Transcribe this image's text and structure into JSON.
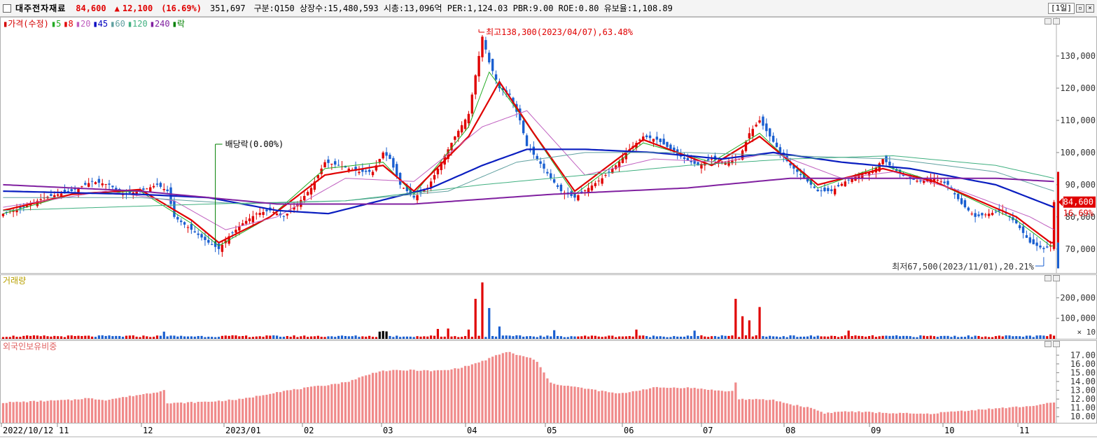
{
  "header": {
    "name": "대주전자재료",
    "price": "84,600",
    "arrow": "▲",
    "change": "12,100",
    "change_pct": "(16.69%)",
    "volume": "351,697",
    "stats": "구분:Q150 상장수:15,480,593 시총:13,096억 PER:1,124.03 PBR:9.00 ROE:0.80 유보율:1,108.89",
    "period": "[1일]"
  },
  "legend_price": [
    {
      "text": "가격(수정)",
      "color": "#d40000"
    },
    {
      "text": "5",
      "color": "#22aa22"
    },
    {
      "text": "8",
      "color": "#e00000"
    },
    {
      "text": "20",
      "color": "#c060c0"
    },
    {
      "text": "45",
      "color": "#0000c0"
    },
    {
      "text": "60",
      "color": "#60a0a0"
    },
    {
      "text": "120",
      "color": "#40b080"
    },
    {
      "text": "240",
      "color": "#8020a0"
    },
    {
      "text": "락",
      "color": "#008000"
    }
  ],
  "legend_volume": "거래량",
  "legend_foreign": "외국인보유비중",
  "annotations": {
    "high": "최고138,300(2023/04/07),63.48%",
    "low": "최저67,500(2023/11/01),20.21%",
    "dividend": "배당락(0.00%)",
    "last_price": "84,600",
    "last_pct": "16.69%",
    "volume_unit": "× 10"
  },
  "chart_data": [
    {
      "type": "candlestick",
      "panel": "price",
      "x_labels": [
        "2022/10/12",
        "11",
        "12",
        "2023/01",
        "02",
        "03",
        "04",
        "05",
        "06",
        "07",
        "08",
        "09",
        "10",
        "11"
      ],
      "y_ticks": [
        "70,000",
        "80,000",
        "90,000",
        "100,000",
        "110,000",
        "120,000",
        "130,000"
      ],
      "ylim": [
        63000,
        140000
      ],
      "close_path": [
        [
          0,
          81000
        ],
        [
          6,
          83000
        ],
        [
          12,
          86000
        ],
        [
          20,
          88000
        ],
        [
          26,
          91000
        ],
        [
          31,
          90000
        ],
        [
          35,
          87000
        ],
        [
          40,
          88000
        ],
        [
          45,
          90000
        ],
        [
          48,
          88000
        ],
        [
          50,
          80000
        ],
        [
          55,
          76000
        ],
        [
          60,
          72000
        ],
        [
          63,
          70000
        ],
        [
          66,
          74000
        ],
        [
          70,
          78000
        ],
        [
          74,
          81000
        ],
        [
          78,
          82000
        ],
        [
          82,
          80000
        ],
        [
          86,
          84000
        ],
        [
          90,
          89000
        ],
        [
          94,
          97000
        ],
        [
          98,
          96000
        ],
        [
          104,
          94000
        ],
        [
          108,
          94000
        ],
        [
          111,
          100000
        ],
        [
          113,
          98000
        ],
        [
          116,
          90000
        ],
        [
          120,
          86000
        ],
        [
          124,
          89000
        ],
        [
          128,
          97000
        ],
        [
          132,
          105000
        ],
        [
          136,
          112000
        ],
        [
          139,
          130000
        ],
        [
          140,
          136000
        ],
        [
          142,
          128000
        ],
        [
          145,
          120000
        ],
        [
          148,
          118000
        ],
        [
          151,
          110000
        ],
        [
          153,
          102000
        ],
        [
          156,
          98000
        ],
        [
          160,
          92000
        ],
        [
          163,
          88000
        ],
        [
          167,
          86000
        ],
        [
          171,
          89000
        ],
        [
          175,
          92000
        ],
        [
          179,
          96000
        ],
        [
          183,
          101000
        ],
        [
          187,
          105000
        ],
        [
          191,
          104000
        ],
        [
          195,
          101000
        ],
        [
          199,
          98000
        ],
        [
          203,
          96000
        ],
        [
          207,
          98000
        ],
        [
          211,
          97000
        ],
        [
          215,
          98000
        ],
        [
          218,
          106000
        ],
        [
          221,
          110000
        ],
        [
          224,
          105000
        ],
        [
          227,
          100000
        ],
        [
          230,
          96000
        ],
        [
          234,
          92000
        ],
        [
          238,
          88000
        ],
        [
          242,
          88000
        ],
        [
          246,
          91000
        ],
        [
          250,
          93000
        ],
        [
          254,
          94000
        ],
        [
          257,
          98000
        ],
        [
          260,
          95000
        ],
        [
          264,
          92000
        ],
        [
          268,
          91000
        ],
        [
          272,
          92000
        ],
        [
          276,
          90000
        ],
        [
          280,
          84000
        ],
        [
          284,
          80000
        ],
        [
          288,
          81000
        ],
        [
          292,
          82000
        ],
        [
          296,
          78000
        ],
        [
          300,
          72000
        ],
        [
          304,
          70000
        ],
        [
          306,
          71000
        ],
        [
          307,
          84600
        ]
      ],
      "moving_averages": {
        "ma5": [
          [
            0,
            81000
          ],
          [
            20,
            87000
          ],
          [
            40,
            88000
          ],
          [
            55,
            78000
          ],
          [
            63,
            71000
          ],
          [
            78,
            80000
          ],
          [
            94,
            95000
          ],
          [
            111,
            97000
          ],
          [
            120,
            87000
          ],
          [
            136,
            108000
          ],
          [
            142,
            125000
          ],
          [
            151,
            112000
          ],
          [
            167,
            87000
          ],
          [
            187,
            103000
          ],
          [
            207,
            97000
          ],
          [
            221,
            106000
          ],
          [
            238,
            89000
          ],
          [
            257,
            96000
          ],
          [
            272,
            91000
          ],
          [
            296,
            79000
          ],
          [
            306,
            71000
          ]
        ],
        "ma8": [
          [
            0,
            82000
          ],
          [
            20,
            87000
          ],
          [
            40,
            88500
          ],
          [
            55,
            79000
          ],
          [
            63,
            72000
          ],
          [
            78,
            80000
          ],
          [
            94,
            93000
          ],
          [
            111,
            96000
          ],
          [
            120,
            88000
          ],
          [
            136,
            105000
          ],
          [
            145,
            122000
          ],
          [
            155,
            106000
          ],
          [
            167,
            88000
          ],
          [
            187,
            104000
          ],
          [
            207,
            96000
          ],
          [
            221,
            105000
          ],
          [
            238,
            90000
          ],
          [
            257,
            95000
          ],
          [
            272,
            91000
          ],
          [
            296,
            80000
          ],
          [
            306,
            72000
          ]
        ],
        "ma20": [
          [
            0,
            83000
          ],
          [
            30,
            88000
          ],
          [
            50,
            85000
          ],
          [
            65,
            76000
          ],
          [
            80,
            80000
          ],
          [
            100,
            92000
          ],
          [
            120,
            91000
          ],
          [
            140,
            108000
          ],
          [
            153,
            113000
          ],
          [
            170,
            93000
          ],
          [
            190,
            98000
          ],
          [
            210,
            97000
          ],
          [
            225,
            100000
          ],
          [
            245,
            92000
          ],
          [
            260,
            94000
          ],
          [
            280,
            88000
          ],
          [
            300,
            80000
          ],
          [
            307,
            76000
          ]
        ],
        "ma45": [
          [
            0,
            88000
          ],
          [
            40,
            87000
          ],
          [
            60,
            86000
          ],
          [
            80,
            82000
          ],
          [
            95,
            81000
          ],
          [
            110,
            85000
          ],
          [
            125,
            89000
          ],
          [
            140,
            96000
          ],
          [
            153,
            101000
          ],
          [
            170,
            101000
          ],
          [
            190,
            100000
          ],
          [
            210,
            98000
          ],
          [
            225,
            100000
          ],
          [
            245,
            97000
          ],
          [
            265,
            95000
          ],
          [
            290,
            90000
          ],
          [
            307,
            83000
          ]
        ],
        "ma60": [
          [
            0,
            86000
          ],
          [
            40,
            86000
          ],
          [
            70,
            84000
          ],
          [
            100,
            85000
          ],
          [
            130,
            88000
          ],
          [
            150,
            97000
          ],
          [
            170,
            100000
          ],
          [
            200,
            100000
          ],
          [
            230,
            99000
          ],
          [
            260,
            98000
          ],
          [
            290,
            94000
          ],
          [
            307,
            88000
          ]
        ],
        "ma120": [
          [
            0,
            82000
          ],
          [
            60,
            84000
          ],
          [
            100,
            85000
          ],
          [
            140,
            90000
          ],
          [
            170,
            93000
          ],
          [
            200,
            96000
          ],
          [
            230,
            98000
          ],
          [
            260,
            99000
          ],
          [
            290,
            96000
          ],
          [
            307,
            92000
          ]
        ],
        "ma240": [
          [
            0,
            90000
          ],
          [
            40,
            88000
          ],
          [
            80,
            84000
          ],
          [
            120,
            84000
          ],
          [
            160,
            87000
          ],
          [
            200,
            89000
          ],
          [
            230,
            92000
          ],
          [
            260,
            92000
          ],
          [
            290,
            92000
          ],
          [
            307,
            91000
          ]
        ]
      }
    },
    {
      "type": "bar",
      "panel": "volume",
      "y_ticks": [
        "100,000",
        "200,000"
      ],
      "ylim": [
        0,
        280000
      ],
      "spikes": [
        [
          47,
          35000
        ],
        [
          110,
          35000
        ],
        [
          111,
          38000
        ],
        [
          112,
          36000
        ],
        [
          127,
          48000
        ],
        [
          130,
          50000
        ],
        [
          136,
          45000
        ],
        [
          138,
          195000
        ],
        [
          140,
          275000
        ],
        [
          142,
          150000
        ],
        [
          145,
          60000
        ],
        [
          161,
          42000
        ],
        [
          185,
          45000
        ],
        [
          202,
          40000
        ],
        [
          214,
          195000
        ],
        [
          216,
          110000
        ],
        [
          218,
          90000
        ],
        [
          221,
          155000
        ],
        [
          247,
          40000
        ],
        [
          306,
          22000
        ]
      ],
      "baseline": 8000
    },
    {
      "type": "bar",
      "panel": "foreign_ownership",
      "y_ticks": [
        "10.00",
        "11.00",
        "12.00",
        "13.00",
        "14.00",
        "15.00",
        "16.00",
        "17.00"
      ],
      "ylim": [
        9.3,
        17.9
      ],
      "path": [
        [
          0,
          11.6
        ],
        [
          20,
          11.9
        ],
        [
          24,
          12.1
        ],
        [
          30,
          11.9
        ],
        [
          45,
          12.8
        ],
        [
          47,
          13.1
        ],
        [
          48,
          11.5
        ],
        [
          60,
          11.7
        ],
        [
          70,
          12.0
        ],
        [
          80,
          12.8
        ],
        [
          100,
          13.9
        ],
        [
          110,
          15.2
        ],
        [
          120,
          15.3
        ],
        [
          125,
          15.2
        ],
        [
          130,
          15.3
        ],
        [
          135,
          15.7
        ],
        [
          140,
          16.3
        ],
        [
          145,
          17.1
        ],
        [
          148,
          17.4
        ],
        [
          150,
          17.0
        ],
        [
          154,
          16.7
        ],
        [
          156,
          16.2
        ],
        [
          160,
          13.8
        ],
        [
          170,
          13.2
        ],
        [
          180,
          12.6
        ],
        [
          190,
          13.3
        ],
        [
          200,
          13.3
        ],
        [
          206,
          13.1
        ],
        [
          210,
          12.9
        ],
        [
          213,
          12.9
        ],
        [
          214,
          13.9
        ],
        [
          215,
          12.0
        ],
        [
          225,
          11.9
        ],
        [
          230,
          11.4
        ],
        [
          236,
          11.0
        ],
        [
          240,
          10.4
        ],
        [
          246,
          10.6
        ],
        [
          260,
          10.4
        ],
        [
          270,
          10.3
        ],
        [
          275,
          10.5
        ],
        [
          285,
          10.8
        ],
        [
          300,
          11.2
        ],
        [
          307,
          11.6
        ]
      ]
    }
  ]
}
